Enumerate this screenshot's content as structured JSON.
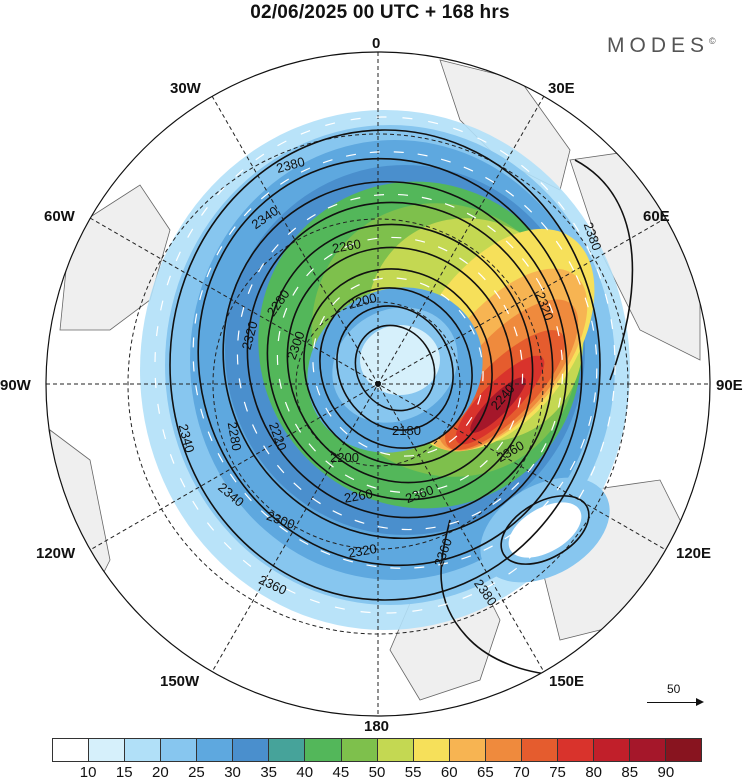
{
  "header": {
    "title": "02/06/2025  00 UTC  + 168 hrs",
    "brand": "MODES"
  },
  "map": {
    "projection": "north polar stereographic",
    "longitude_labels": {
      "lon_0": "0",
      "lon_30e": "30E",
      "lon_60e": "60E",
      "lon_90e": "90E",
      "lon_120e": "120E",
      "lon_150e": "150E",
      "lon_180": "180",
      "lon_150w": "150W",
      "lon_120w": "120W",
      "lon_90w": "90W",
      "lon_60w": "60W",
      "lon_30w": "30W"
    },
    "contour_labels": {
      "c2380a": "2380",
      "c2340a": "2340",
      "c2260a": "2260",
      "c2200a": "2200",
      "c2280a": "2280",
      "c2320a": "2320",
      "c2300a": "2300",
      "c2280b": "2280",
      "c2220a": "2220",
      "c2340b": "2340",
      "c2180": "2180",
      "c2200b": "2200",
      "c2260b": "2260",
      "c2300b": "2300",
      "c2320b": "2320",
      "c2340c": "2340",
      "c2360a": "2360",
      "c2380b": "2380",
      "c2360b": "2360",
      "c2320c": "2320",
      "c2380c": "2380",
      "c2360c": "2360",
      "c2240": "2240",
      "c2360d": "2360"
    },
    "wind_speed_colors": [
      "#ffffff",
      "#d6f0fb",
      "#b1e0f8",
      "#87c6ef",
      "#5ea8df",
      "#4a8fcd",
      "#46a39a",
      "#53b75a",
      "#7ec04c",
      "#c4d852",
      "#f6e05a",
      "#f7b452",
      "#ef8a3d",
      "#e55c2e",
      "#d9332c",
      "#c11f2a",
      "#a5172a",
      "#88141f"
    ],
    "vector_scale_label": "50"
  },
  "colorbar": {
    "ticks": [
      "10",
      "15",
      "20",
      "25",
      "30",
      "35",
      "40",
      "45",
      "50",
      "55",
      "60",
      "65",
      "70",
      "75",
      "80",
      "85",
      "90"
    ],
    "colors": [
      "#ffffff",
      "#d6f0fb",
      "#b1e0f8",
      "#87c6ef",
      "#5ea8df",
      "#4a8fcd",
      "#46a39a",
      "#53b75a",
      "#7ec04c",
      "#c4d852",
      "#f6e05a",
      "#f7b452",
      "#ef8a3d",
      "#e55c2e",
      "#d9332c",
      "#c11f2a",
      "#a5172a",
      "#88141f"
    ]
  }
}
